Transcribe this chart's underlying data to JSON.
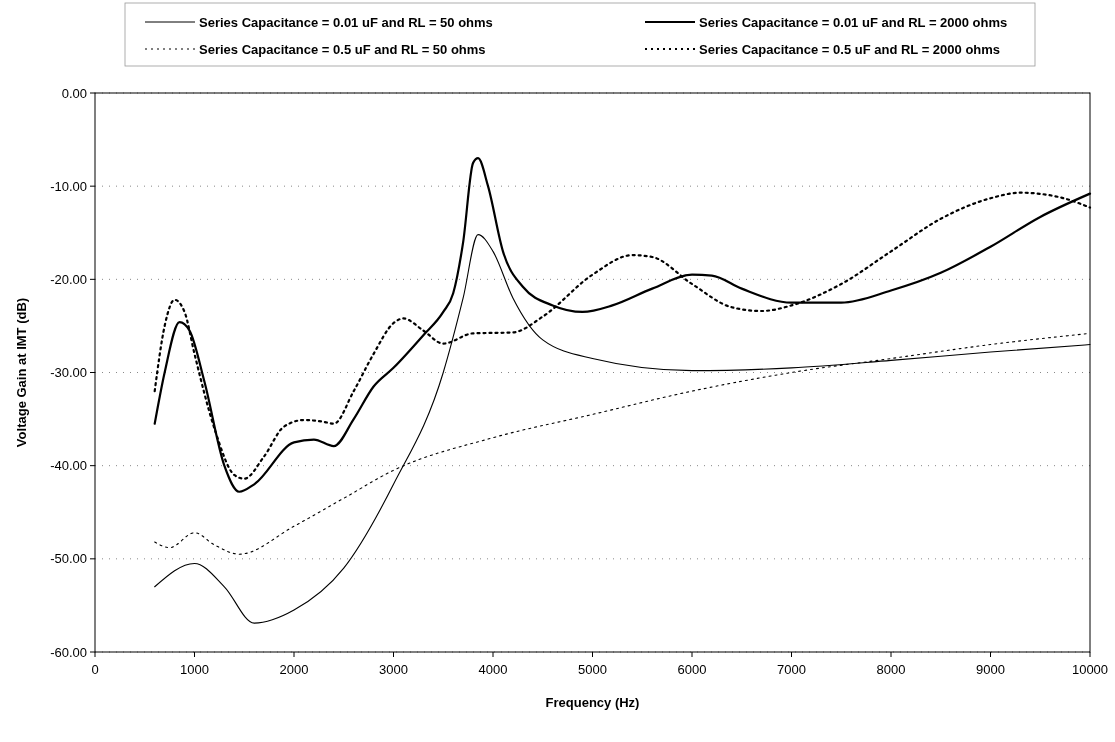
{
  "chart_data": {
    "type": "line",
    "xlabel": "Frequency (Hz)",
    "ylabel": "Voltage Gain at IMT (dB)",
    "xlim": [
      0,
      10000
    ],
    "xticks": [
      0,
      1000,
      2000,
      3000,
      4000,
      5000,
      6000,
      7000,
      8000,
      9000,
      10000
    ],
    "ylim": [
      -60,
      0
    ],
    "yticks": [
      {
        "value": -60,
        "label": "-60.00"
      },
      {
        "value": -50,
        "label": "-50.00"
      },
      {
        "value": -40,
        "label": "-40.00"
      },
      {
        "value": -30,
        "label": "-30.00"
      },
      {
        "value": -20,
        "label": "-20.00"
      },
      {
        "value": -10,
        "label": "-10.00"
      },
      {
        "value": 0,
        "label": "0.00"
      }
    ],
    "grid": "y",
    "legend": "top",
    "marker": "none",
    "series": [
      {
        "name": "Series Capacitance = 0.01 uF and RL = 50 ohms",
        "color": "#000000",
        "line_style": "solid",
        "x": [
          600,
          1000,
          1300,
          1600,
          2000,
          2500,
          3000,
          3500,
          3700,
          3850,
          4000,
          4200,
          4500,
          5000,
          6000,
          7000,
          8000,
          9000,
          10000
        ],
        "values": [
          -53,
          -50.5,
          -53,
          -56.9,
          -55.5,
          -51,
          -42,
          -30,
          -22,
          -15.2,
          -17,
          -22,
          -26.5,
          -28.5,
          -29.8,
          -29.5,
          -28.7,
          -27.8,
          -27
        ]
      },
      {
        "name": "Series Capacitance = 0.01 uF and RL = 2000 ohms",
        "color": "#000000",
        "line_style": "solid",
        "x": [
          600,
          700,
          850,
          950,
          1100,
          1300,
          1450,
          1600,
          2000,
          2200,
          2400,
          2600,
          2800,
          3000,
          3300,
          3500,
          3600,
          3700,
          3800,
          3850,
          3950,
          4100,
          4300,
          4600,
          4900,
          5200,
          5600,
          6000,
          6200,
          6500,
          7000,
          7500,
          8000,
          8500,
          9000,
          9500,
          10000
        ],
        "values": [
          -35.5,
          -30,
          -24.6,
          -25.5,
          -31,
          -40,
          -42.8,
          -42,
          -37.5,
          -37.2,
          -37.9,
          -35,
          -31.5,
          -29.5,
          -26,
          -23.5,
          -21.5,
          -16,
          -7.5,
          -7,
          -10,
          -17,
          -20.8,
          -22.8,
          -23.5,
          -22.8,
          -21,
          -19.5,
          -19.6,
          -21,
          -22.5,
          -22.5,
          -21.2,
          -19.3,
          -16.5,
          -13.3,
          -10.8
        ]
      },
      {
        "name": "Series Capacitance = 0.5 uF and RL = 50 ohms",
        "color": "#000000",
        "line_style": "dotted",
        "x": [
          600,
          750,
          1000,
          1200,
          1450,
          2000,
          2500,
          3000,
          4000,
          5000,
          6000,
          7000,
          8000,
          9000,
          10000
        ],
        "values": [
          -48.2,
          -48.8,
          -47.2,
          -48.5,
          -49.5,
          -46.5,
          -43.5,
          -40.5,
          -37,
          -34.5,
          -32,
          -30,
          -28.5,
          -27,
          -25.8
        ]
      },
      {
        "name": "Series Capacitance = 0.5 uF and RL = 2000 ohms",
        "color": "#000000",
        "line_style": "dotted",
        "x": [
          600,
          700,
          800,
          900,
          1000,
          1200,
          1400,
          1500,
          1700,
          1900,
          2100,
          2300,
          2400,
          2600,
          2800,
          3000,
          3100,
          3300,
          3500,
          3800,
          4200,
          4500,
          5000,
          5400,
          5600,
          6000,
          6400,
          6700,
          7000,
          7500,
          8000,
          8500,
          9000,
          9300,
          9700,
          10000
        ],
        "values": [
          -32,
          -25,
          -22.2,
          -23.5,
          -28,
          -36,
          -41,
          -41.4,
          -39,
          -35.8,
          -35.1,
          -35.3,
          -35.5,
          -32,
          -28,
          -24.7,
          -24.2,
          -25.5,
          -26.9,
          -25.8,
          -25.7,
          -24,
          -19.5,
          -17.4,
          -17.6,
          -20.5,
          -23,
          -23.4,
          -22.8,
          -20.5,
          -17,
          -13.5,
          -11.3,
          -10.7,
          -11.2,
          -12.3
        ]
      }
    ]
  }
}
